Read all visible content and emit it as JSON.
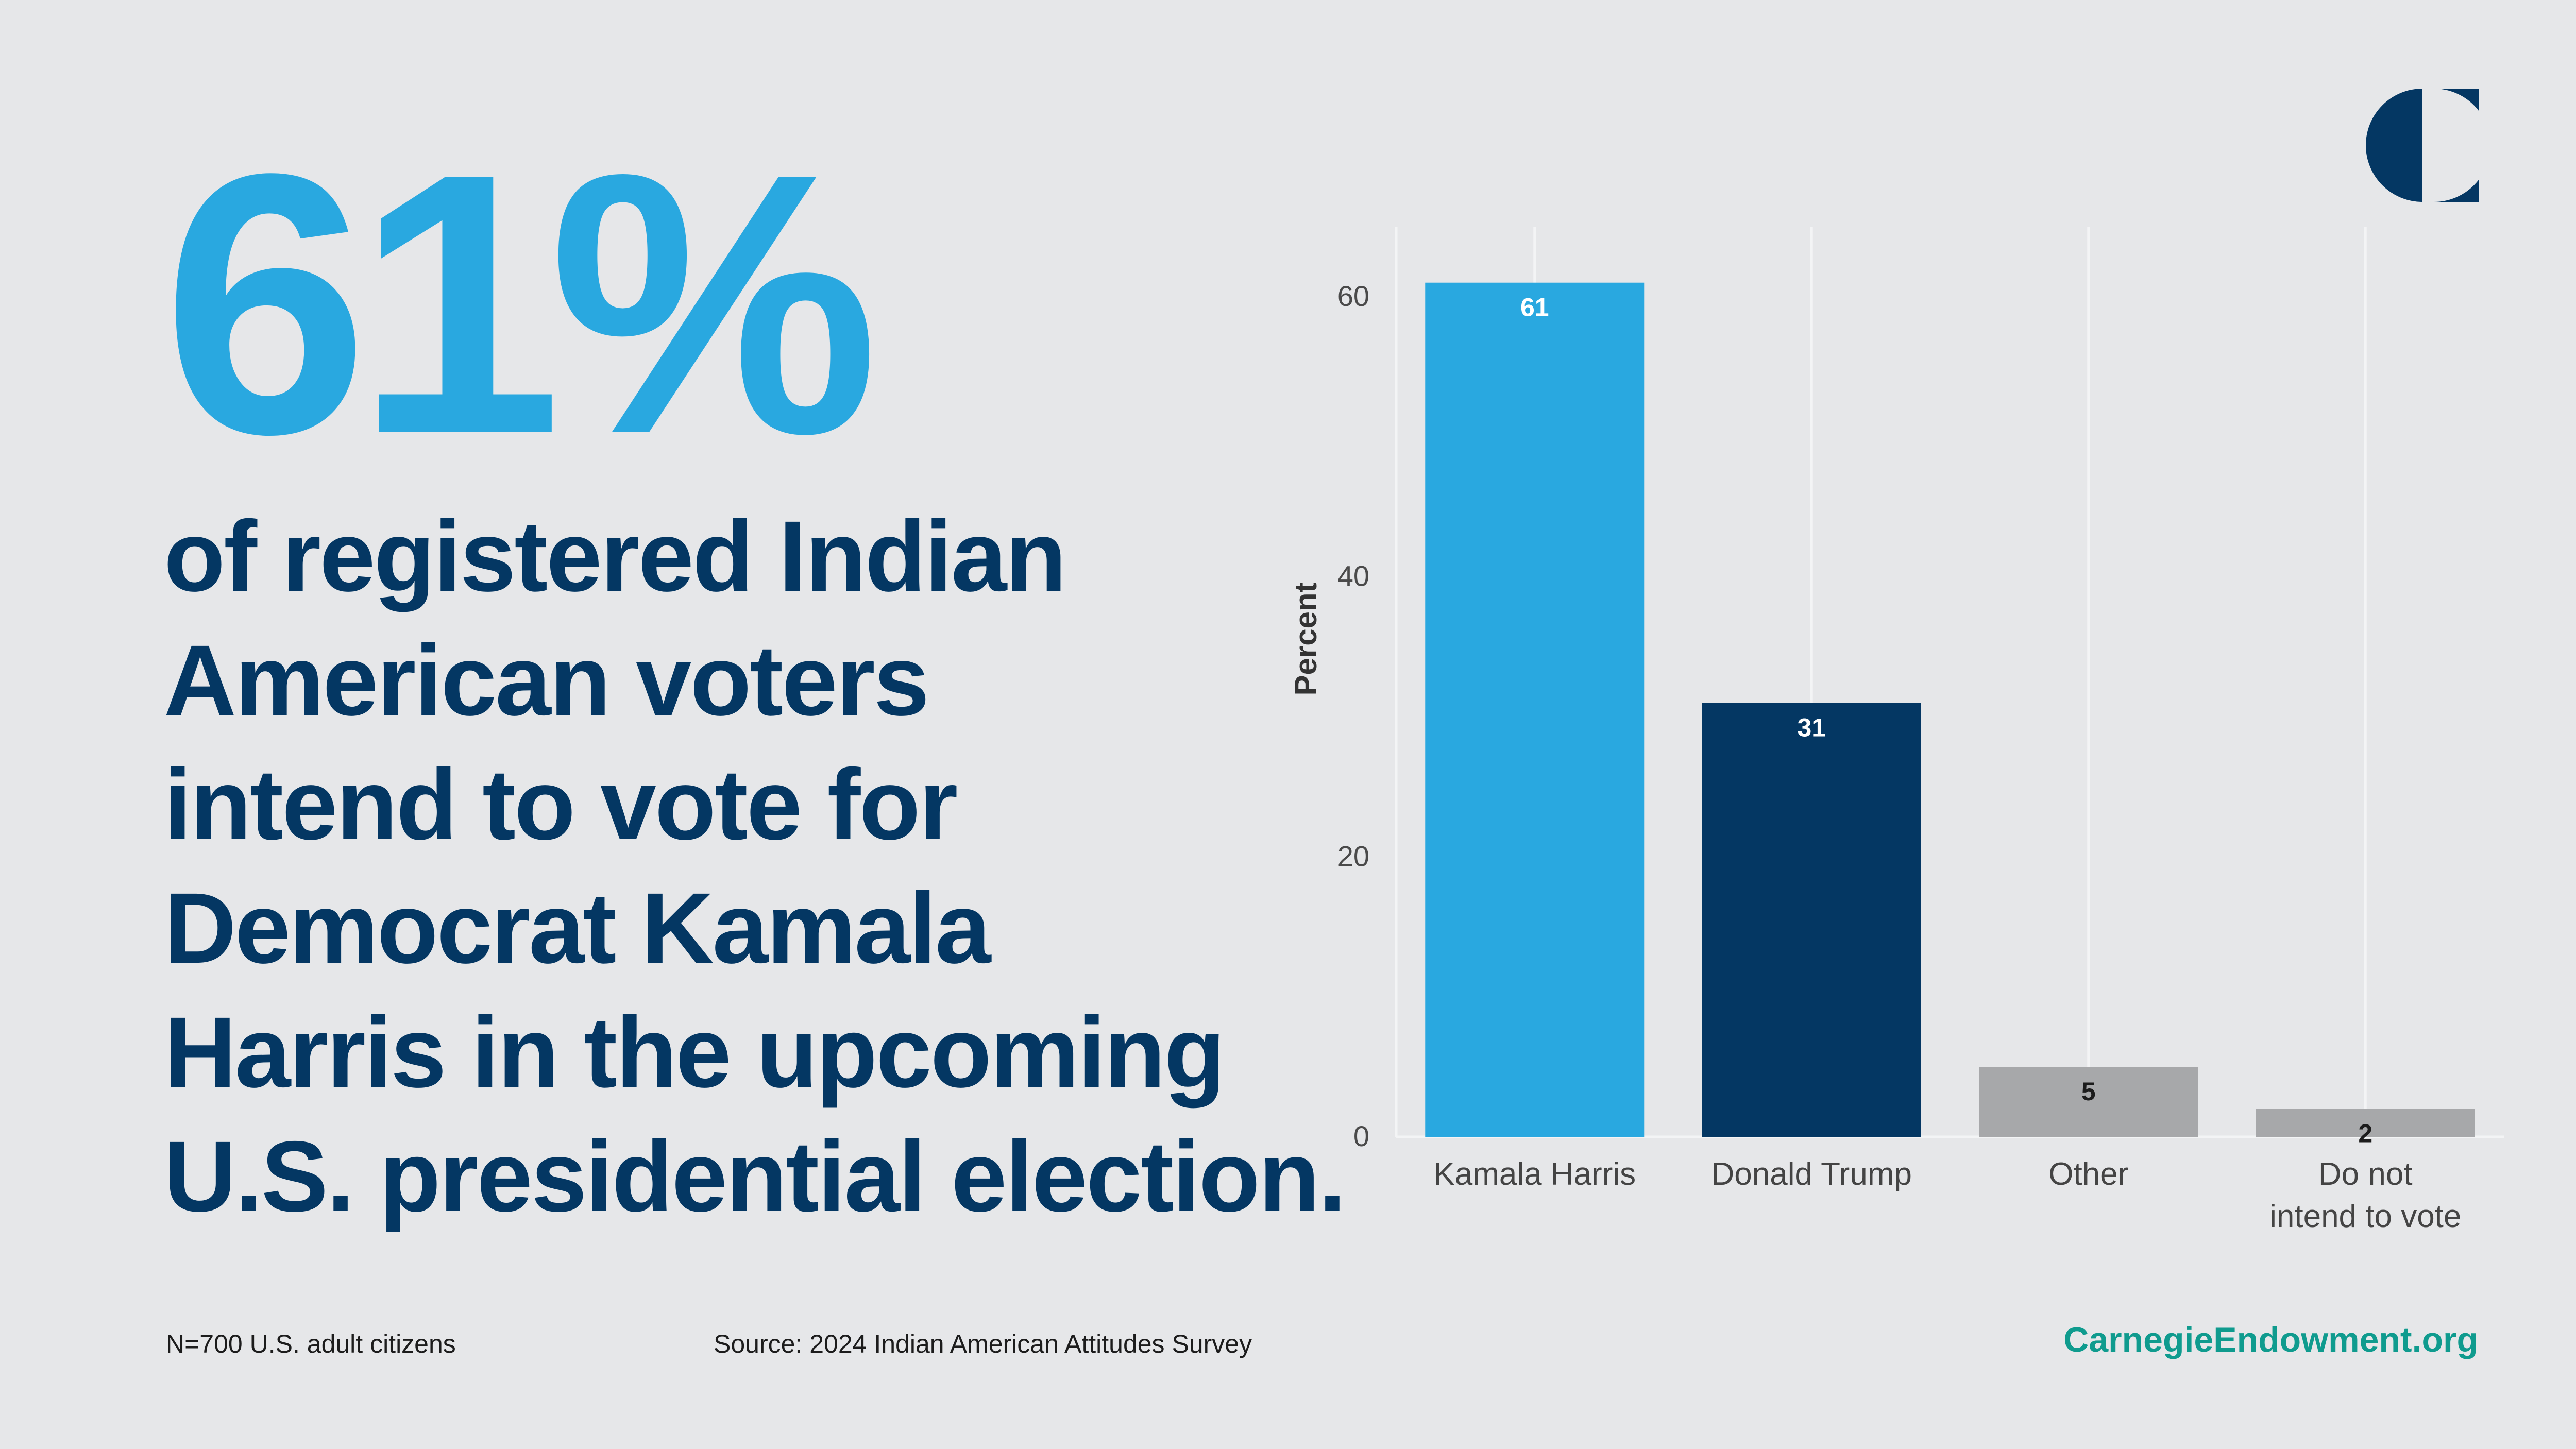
{
  "headline": {
    "stat": "61%",
    "lines": [
      "of registered Indian",
      "American voters",
      "intend to vote for",
      "Democrat Kamala",
      "Harris in the upcoming",
      "U.S. presidential election."
    ]
  },
  "footer": {
    "sample": "N=700 U.S. adult citizens",
    "source": "Source: 2024 Indian American Attitudes Survey",
    "site": "CarnegieEndowment.org"
  },
  "logo": {
    "icon": "carnegie-logo-icon",
    "color": "#043763"
  },
  "colors": {
    "background": "#e6e7e9",
    "stat": "#29a8e0",
    "headline": "#043763",
    "site": "#0f9b8e"
  },
  "chart_data": {
    "type": "bar",
    "title": "",
    "xlabel": "",
    "ylabel": "Percent",
    "ylim": [
      0,
      65
    ],
    "yticks": [
      0,
      20,
      40,
      60
    ],
    "grid": true,
    "categories": [
      {
        "label": [
          "Kamala Harris"
        ],
        "value": 61,
        "color": "#29a8e0",
        "label_color": "#ffffff"
      },
      {
        "label": [
          "Donald Trump"
        ],
        "value": 31,
        "color": "#043763",
        "label_color": "#ffffff"
      },
      {
        "label": [
          "Other"
        ],
        "value": 5,
        "color": "#a7a8aa",
        "label_color": "#1c1c1c"
      },
      {
        "label": [
          "Do not",
          "intend to vote"
        ],
        "value": 2,
        "color": "#a7a8aa",
        "label_color": "#1c1c1c"
      }
    ]
  }
}
